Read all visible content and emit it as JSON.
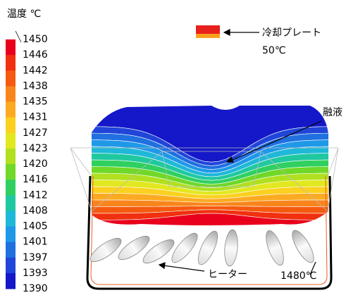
{
  "legend": {
    "title": "温度 ℃",
    "labels": [
      1450,
      1446,
      1442,
      1438,
      1435,
      1431,
      1427,
      1423,
      1420,
      1416,
      1412,
      1408,
      1405,
      1401,
      1397,
      1393,
      1390
    ],
    "colors": [
      "#e8001c",
      "#f0300e",
      "#f45a10",
      "#f8851c",
      "#fbaa22",
      "#fbd020",
      "#e2e820",
      "#b0e020",
      "#70d828",
      "#30d060",
      "#20c8a0",
      "#20b8d8",
      "#2098e8",
      "#2070e0",
      "#2045d8",
      "#1418c8"
    ]
  },
  "annotations": {
    "cooling_plate": "冷却プレート",
    "cooling_temp": "50℃",
    "melt": "融液",
    "heater": "ヒーター",
    "heater_temp": "1480℃"
  }
}
